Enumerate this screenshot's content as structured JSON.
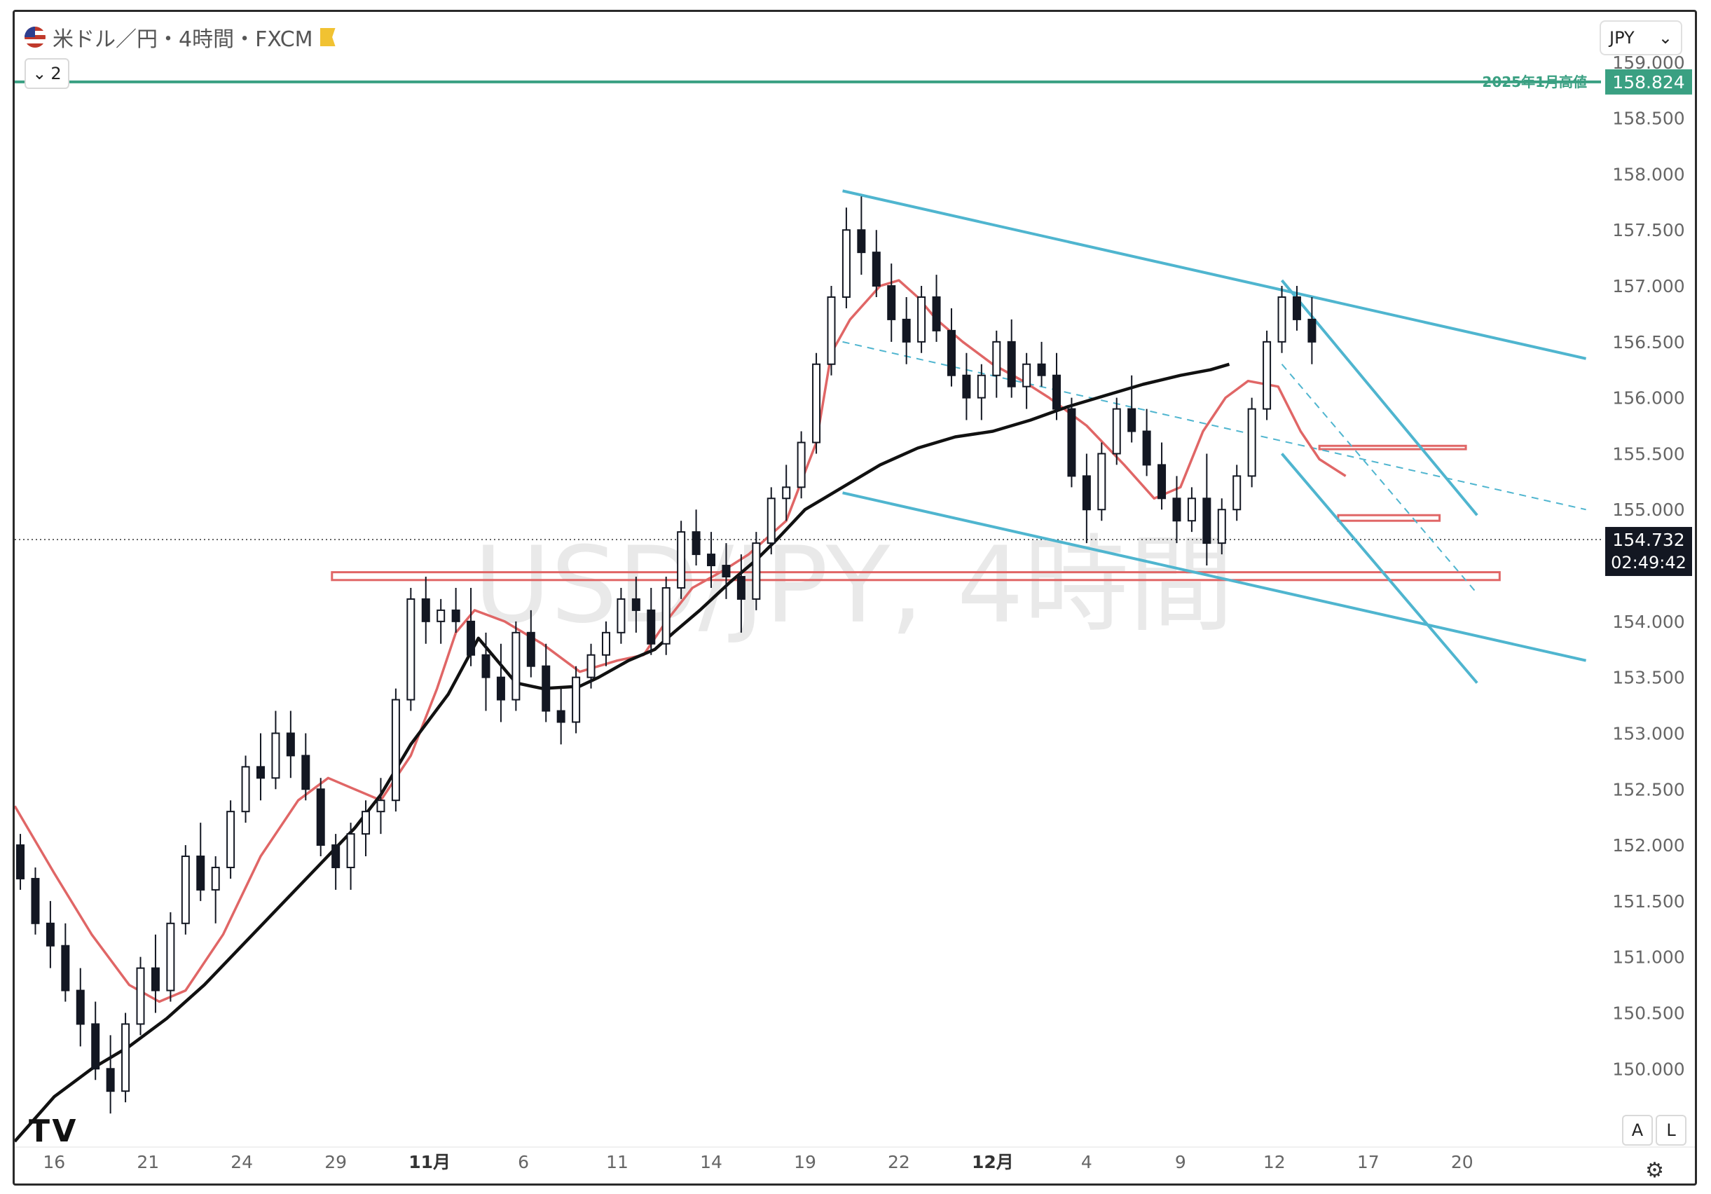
{
  "header": {
    "symbol_title": "米ドル／円・4時間・FXCM",
    "indicator_count": "2",
    "currency": "JPY"
  },
  "icons": {
    "flag": "us-flag-icon",
    "bookmark": "bookmark-icon",
    "collapse": "chevron-down-icon",
    "currency_dropdown": "chevron-down-icon",
    "logo": "tradingview-logo",
    "settings": "settings-icon"
  },
  "scale_buttons": {
    "auto": "A",
    "log": "L"
  },
  "watermark": "USD/JPY, 4時間",
  "chart_data": {
    "type": "line",
    "title": "米ドル／円・4時間・FXCM",
    "xlabel": "",
    "ylabel": "",
    "ylim": [
      149.3,
      159.45
    ],
    "grid": false,
    "y_ticks": [
      "150.000",
      "150.500",
      "151.000",
      "151.500",
      "152.000",
      "152.500",
      "153.000",
      "153.500",
      "154.000",
      "154.500",
      "155.000",
      "155.500",
      "156.000",
      "156.500",
      "157.000",
      "157.500",
      "158.000",
      "158.500",
      "159.000"
    ],
    "x_ticks": [
      "16",
      "21",
      "24",
      "29",
      "11月",
      "6",
      "11",
      "14",
      "19",
      "22",
      "12月",
      "4",
      "9",
      "12",
      "17",
      "20"
    ],
    "x_tick_positions": [
      0,
      2.5,
      5,
      7.5,
      10,
      12.5,
      15,
      17.5,
      20,
      22.5,
      25,
      27.5,
      30,
      32.5,
      35,
      37.5
    ],
    "x_extent": [
      -1.05,
      41.2
    ],
    "current_price": {
      "value": 154.732,
      "label": "154.732",
      "countdown": "02:49:42"
    },
    "annotations": [
      {
        "label": "2025年1月高値",
        "value": 158.824,
        "text": "158.824",
        "color": "#3aa082"
      }
    ],
    "colors": {
      "candle": "#131722",
      "ma_fast": "#e06666",
      "ma_slow": "#111111",
      "trend": "#4fb5cf",
      "zone": "#e06666",
      "annotation": "#3aa082"
    },
    "series": [
      {
        "type": "line",
        "name": "",
        "color": "#e06666",
        "points": [
          [
            -1.05,
            152.35
          ],
          [
            0,
            151.75
          ],
          [
            1,
            151.2
          ],
          [
            2,
            150.75
          ],
          [
            2.8,
            150.6
          ],
          [
            3.5,
            150.7
          ],
          [
            4.5,
            151.2
          ],
          [
            5.5,
            151.9
          ],
          [
            6.5,
            152.4
          ],
          [
            7.3,
            152.6
          ],
          [
            8,
            152.5
          ],
          [
            8.7,
            152.4
          ],
          [
            9.5,
            152.8
          ],
          [
            10.2,
            153.4
          ],
          [
            10.7,
            153.9
          ],
          [
            11.2,
            154.1
          ],
          [
            12,
            154.0
          ],
          [
            13,
            153.8
          ],
          [
            14,
            153.55
          ],
          [
            14.5,
            153.6
          ],
          [
            15,
            153.65
          ],
          [
            15.7,
            153.7
          ],
          [
            16.3,
            154.0
          ],
          [
            17,
            154.3
          ],
          [
            17.8,
            154.45
          ],
          [
            18.5,
            154.6
          ],
          [
            19.5,
            154.9
          ],
          [
            20.3,
            155.6
          ],
          [
            20.7,
            156.4
          ],
          [
            21.2,
            156.7
          ],
          [
            22,
            157.0
          ],
          [
            22.5,
            157.05
          ],
          [
            23,
            156.9
          ],
          [
            23.5,
            156.7
          ],
          [
            24.2,
            156.5
          ],
          [
            25,
            156.3
          ],
          [
            25.8,
            156.15
          ],
          [
            26.5,
            156.0
          ],
          [
            27.5,
            155.75
          ],
          [
            28.5,
            155.4
          ],
          [
            29.3,
            155.1
          ],
          [
            30,
            155.2
          ],
          [
            30.6,
            155.7
          ],
          [
            31.2,
            156.0
          ],
          [
            31.8,
            156.15
          ],
          [
            32.6,
            156.1
          ],
          [
            33.2,
            155.7
          ],
          [
            33.7,
            155.45
          ],
          [
            34.4,
            155.3
          ]
        ]
      },
      {
        "type": "line",
        "name": "",
        "color": "#111111",
        "points": [
          [
            -1.05,
            149.35
          ],
          [
            0,
            149.75
          ],
          [
            1,
            150.0
          ],
          [
            2,
            150.2
          ],
          [
            3,
            150.45
          ],
          [
            4,
            150.75
          ],
          [
            5,
            151.1
          ],
          [
            6,
            151.45
          ],
          [
            7,
            151.8
          ],
          [
            8,
            152.15
          ],
          [
            8.7,
            152.45
          ],
          [
            9.5,
            152.9
          ],
          [
            10.5,
            153.35
          ],
          [
            11.3,
            153.85
          ],
          [
            12.3,
            153.45
          ],
          [
            13,
            153.4
          ],
          [
            14,
            153.42
          ],
          [
            14.5,
            153.5
          ],
          [
            15.3,
            153.65
          ],
          [
            16,
            153.75
          ],
          [
            16.5,
            153.9
          ],
          [
            17.2,
            154.1
          ],
          [
            18,
            154.35
          ],
          [
            18.7,
            154.55
          ],
          [
            19.3,
            154.75
          ],
          [
            20,
            155.0
          ],
          [
            20.5,
            155.1
          ],
          [
            21,
            155.2
          ],
          [
            22,
            155.4
          ],
          [
            23,
            155.55
          ],
          [
            24,
            155.65
          ],
          [
            25,
            155.7
          ],
          [
            26,
            155.8
          ],
          [
            27,
            155.92
          ],
          [
            28,
            156.02
          ],
          [
            29,
            156.12
          ],
          [
            30,
            156.2
          ],
          [
            30.8,
            156.25
          ],
          [
            31.3,
            156.3
          ]
        ]
      },
      {
        "type": "candlestick",
        "name": "",
        "color": "#131722",
        "ohlc": [
          [
            -0.9,
            152.0,
            152.1,
            151.6,
            151.7
          ],
          [
            -0.5,
            151.7,
            151.8,
            151.2,
            151.3
          ],
          [
            -0.1,
            151.3,
            151.5,
            150.9,
            151.1
          ],
          [
            0.3,
            151.1,
            151.3,
            150.6,
            150.7
          ],
          [
            0.7,
            150.7,
            150.9,
            150.2,
            150.4
          ],
          [
            1.1,
            150.4,
            150.6,
            149.9,
            150.0
          ],
          [
            1.5,
            150.0,
            150.3,
            149.6,
            149.8
          ],
          [
            1.9,
            149.8,
            150.5,
            149.7,
            150.4
          ],
          [
            2.3,
            150.4,
            151.0,
            150.3,
            150.9
          ],
          [
            2.7,
            150.9,
            151.2,
            150.5,
            150.7
          ],
          [
            3.1,
            150.7,
            151.4,
            150.6,
            151.3
          ],
          [
            3.5,
            151.3,
            152.0,
            151.2,
            151.9
          ],
          [
            3.9,
            151.9,
            152.2,
            151.5,
            151.6
          ],
          [
            4.3,
            151.6,
            151.9,
            151.3,
            151.8
          ],
          [
            4.7,
            151.8,
            152.4,
            151.7,
            152.3
          ],
          [
            5.1,
            152.3,
            152.8,
            152.2,
            152.7
          ],
          [
            5.5,
            152.7,
            153.0,
            152.4,
            152.6
          ],
          [
            5.9,
            152.6,
            153.2,
            152.5,
            153.0
          ],
          [
            6.3,
            153.0,
            153.2,
            152.6,
            152.8
          ],
          [
            6.7,
            152.8,
            153.0,
            152.4,
            152.5
          ],
          [
            7.1,
            152.5,
            152.6,
            151.9,
            152.0
          ],
          [
            7.5,
            152.0,
            152.1,
            151.6,
            151.8
          ],
          [
            7.9,
            151.8,
            152.2,
            151.6,
            152.1
          ],
          [
            8.3,
            152.1,
            152.4,
            151.9,
            152.3
          ],
          [
            8.7,
            152.3,
            152.6,
            152.1,
            152.4
          ],
          [
            9.1,
            152.4,
            153.4,
            152.3,
            153.3
          ],
          [
            9.5,
            153.3,
            154.3,
            153.2,
            154.2
          ],
          [
            9.9,
            154.2,
            154.4,
            153.8,
            154.0
          ],
          [
            10.3,
            154.0,
            154.2,
            153.8,
            154.1
          ],
          [
            10.7,
            154.1,
            154.3,
            153.9,
            154.0
          ],
          [
            11.1,
            154.0,
            154.3,
            153.6,
            153.7
          ],
          [
            11.5,
            153.7,
            153.9,
            153.2,
            153.5
          ],
          [
            11.9,
            153.5,
            153.8,
            153.1,
            153.3
          ],
          [
            12.3,
            153.3,
            154.0,
            153.2,
            153.9
          ],
          [
            12.7,
            153.9,
            154.1,
            153.5,
            153.6
          ],
          [
            13.1,
            153.6,
            153.8,
            153.1,
            153.2
          ],
          [
            13.5,
            153.2,
            153.4,
            152.9,
            153.1
          ],
          [
            13.9,
            153.1,
            153.6,
            153.0,
            153.5
          ],
          [
            14.3,
            153.5,
            153.8,
            153.4,
            153.7
          ],
          [
            14.7,
            153.7,
            154.0,
            153.6,
            153.9
          ],
          [
            15.1,
            153.9,
            154.3,
            153.8,
            154.2
          ],
          [
            15.5,
            154.2,
            154.4,
            153.9,
            154.1
          ],
          [
            15.9,
            154.1,
            154.3,
            153.7,
            153.8
          ],
          [
            16.3,
            153.8,
            154.4,
            153.7,
            154.3
          ],
          [
            16.7,
            154.3,
            154.9,
            154.2,
            154.8
          ],
          [
            17.1,
            154.8,
            155.0,
            154.5,
            154.6
          ],
          [
            17.5,
            154.6,
            154.8,
            154.3,
            154.5
          ],
          [
            17.9,
            154.5,
            154.7,
            154.2,
            154.4
          ],
          [
            18.3,
            154.4,
            154.6,
            153.9,
            154.2
          ],
          [
            18.7,
            154.2,
            154.8,
            154.1,
            154.7
          ],
          [
            19.1,
            154.7,
            155.2,
            154.6,
            155.1
          ],
          [
            19.5,
            155.1,
            155.4,
            154.9,
            155.2
          ],
          [
            19.9,
            155.2,
            155.7,
            155.1,
            155.6
          ],
          [
            20.3,
            155.6,
            156.4,
            155.5,
            156.3
          ],
          [
            20.7,
            156.3,
            157.0,
            156.2,
            156.9
          ],
          [
            21.1,
            156.9,
            157.7,
            156.8,
            157.5
          ],
          [
            21.5,
            157.5,
            157.8,
            157.1,
            157.3
          ],
          [
            21.9,
            157.3,
            157.5,
            156.9,
            157.0
          ],
          [
            22.3,
            157.0,
            157.2,
            156.5,
            156.7
          ],
          [
            22.7,
            156.7,
            156.9,
            156.3,
            156.5
          ],
          [
            23.1,
            156.5,
            157.0,
            156.4,
            156.9
          ],
          [
            23.5,
            156.9,
            157.1,
            156.5,
            156.6
          ],
          [
            23.9,
            156.6,
            156.8,
            156.1,
            156.2
          ],
          [
            24.3,
            156.2,
            156.4,
            155.8,
            156.0
          ],
          [
            24.7,
            156.0,
            156.3,
            155.8,
            156.2
          ],
          [
            25.1,
            156.2,
            156.6,
            156.0,
            156.5
          ],
          [
            25.5,
            156.5,
            156.7,
            156.0,
            156.1
          ],
          [
            25.9,
            156.1,
            156.4,
            155.9,
            156.3
          ],
          [
            26.3,
            156.3,
            156.5,
            156.1,
            156.2
          ],
          [
            26.7,
            156.2,
            156.4,
            155.8,
            155.9
          ],
          [
            27.1,
            155.9,
            156.0,
            155.2,
            155.3
          ],
          [
            27.5,
            155.3,
            155.5,
            154.7,
            155.0
          ],
          [
            27.9,
            155.0,
            155.6,
            154.9,
            155.5
          ],
          [
            28.3,
            155.5,
            156.0,
            155.4,
            155.9
          ],
          [
            28.7,
            155.9,
            156.2,
            155.6,
            155.7
          ],
          [
            29.1,
            155.7,
            155.9,
            155.3,
            155.4
          ],
          [
            29.5,
            155.4,
            155.6,
            155.0,
            155.1
          ],
          [
            29.9,
            155.1,
            155.3,
            154.7,
            154.9
          ],
          [
            30.3,
            154.9,
            155.2,
            154.8,
            155.1
          ],
          [
            30.7,
            155.1,
            155.5,
            154.5,
            154.7
          ],
          [
            31.1,
            154.7,
            155.1,
            154.6,
            155.0
          ],
          [
            31.5,
            155.0,
            155.4,
            154.9,
            155.3
          ],
          [
            31.9,
            155.3,
            156.0,
            155.2,
            155.9
          ],
          [
            32.3,
            155.9,
            156.6,
            155.8,
            156.5
          ],
          [
            32.7,
            156.5,
            157.0,
            156.4,
            156.9
          ],
          [
            33.1,
            156.9,
            157.0,
            156.6,
            156.7
          ],
          [
            33.5,
            156.7,
            156.9,
            156.3,
            156.5
          ]
        ]
      }
    ],
    "trendlines": [
      {
        "color": "#4fb5cf",
        "dashed": false,
        "points": [
          [
            21.0,
            157.85
          ],
          [
            40.8,
            156.35
          ]
        ]
      },
      {
        "color": "#4fb5cf",
        "dashed": false,
        "points": [
          [
            21.0,
            155.15
          ],
          [
            40.8,
            153.65
          ]
        ]
      },
      {
        "color": "#4fb5cf",
        "dashed": true,
        "points": [
          [
            21.0,
            156.5
          ],
          [
            40.8,
            155.0
          ]
        ]
      },
      {
        "color": "#4fb5cf",
        "dashed": false,
        "points": [
          [
            32.7,
            157.05
          ],
          [
            37.9,
            154.95
          ]
        ]
      },
      {
        "color": "#4fb5cf",
        "dashed": false,
        "points": [
          [
            32.7,
            155.5
          ],
          [
            37.9,
            153.45
          ]
        ]
      },
      {
        "color": "#4fb5cf",
        "dashed": true,
        "points": [
          [
            32.7,
            156.3
          ],
          [
            37.9,
            154.25
          ]
        ]
      }
    ],
    "zones": [
      {
        "color": "#e06666",
        "x": [
          7.4,
          38.5
        ],
        "y": [
          154.37,
          154.44
        ]
      },
      {
        "color": "#e06666",
        "x": [
          33.7,
          37.6
        ],
        "y": [
          155.54,
          155.57
        ]
      },
      {
        "color": "#e06666",
        "x": [
          34.2,
          36.9
        ],
        "y": [
          154.9,
          154.95
        ]
      }
    ]
  }
}
